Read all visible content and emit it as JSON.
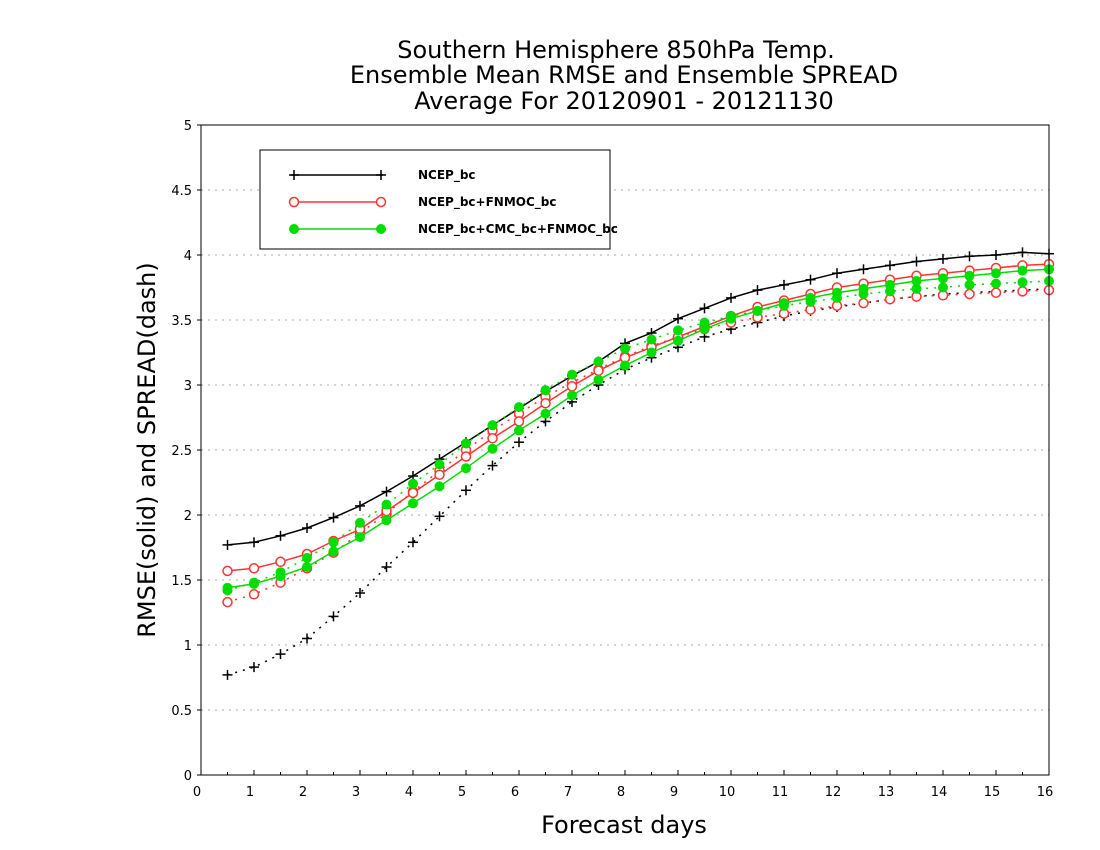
{
  "chart_data": {
    "type": "line",
    "title_lines": [
      "Southern Hemisphere 850hPa Temp.",
      "Ensemble Mean RMSE and Ensemble SPREAD",
      "Average For 20120901 - 20121130"
    ],
    "xlabel": "Forecast days",
    "ylabel": "RMSE(solid) and SPREAD(dash)",
    "xlim": [
      0,
      16
    ],
    "ylim": [
      0,
      5
    ],
    "xticks": [
      "0",
      "1",
      "2",
      "3",
      "4",
      "5",
      "6",
      "7",
      "8",
      "9",
      "10",
      "11",
      "12",
      "13",
      "14",
      "15",
      "16"
    ],
    "yticks": [
      "0",
      "0.5",
      "1",
      "1.5",
      "2",
      "2.5",
      "3",
      "3.5",
      "4",
      "4.5",
      "5"
    ],
    "grid": "horizontal-dotted",
    "legend_position": "top-left",
    "x": [
      0.5,
      1,
      1.5,
      2,
      2.5,
      3,
      3.5,
      4,
      4.5,
      5,
      5.5,
      6,
      6.5,
      7,
      7.5,
      8,
      8.5,
      9,
      9.5,
      10,
      10.5,
      11,
      11.5,
      12,
      12.5,
      13,
      13.5,
      14,
      14.5,
      15,
      15.5,
      16
    ],
    "series": [
      {
        "name": "NCEP_bc",
        "color": "#000000",
        "marker": "plus",
        "rmse": [
          1.77,
          1.79,
          1.84,
          1.9,
          1.98,
          2.07,
          2.18,
          2.3,
          2.43,
          2.56,
          2.69,
          2.82,
          2.95,
          3.07,
          3.18,
          3.32,
          3.4,
          3.51,
          3.59,
          3.67,
          3.73,
          3.77,
          3.81,
          3.86,
          3.89,
          3.92,
          3.95,
          3.97,
          3.99,
          4.0,
          4.02,
          4.01
        ],
        "spread": [
          0.77,
          0.83,
          0.93,
          1.05,
          1.22,
          1.4,
          1.6,
          1.79,
          1.99,
          2.19,
          2.38,
          2.56,
          2.72,
          2.87,
          3.0,
          3.12,
          3.21,
          3.29,
          3.37,
          3.43,
          3.48,
          3.53,
          3.57,
          3.6,
          3.63,
          3.66,
          3.68,
          3.7,
          3.71,
          3.72,
          3.73,
          3.74
        ]
      },
      {
        "name": "NCEP_bc+FNMOC_bc",
        "color": "#ff3333",
        "marker": "open-circle",
        "rmse": [
          1.57,
          1.59,
          1.64,
          1.7,
          1.8,
          1.89,
          2.03,
          2.17,
          2.31,
          2.45,
          2.59,
          2.72,
          2.86,
          2.99,
          3.11,
          3.21,
          3.29,
          3.37,
          3.45,
          3.53,
          3.6,
          3.65,
          3.7,
          3.75,
          3.78,
          3.81,
          3.84,
          3.86,
          3.88,
          3.9,
          3.92,
          3.93
        ],
        "spread": [
          1.33,
          1.39,
          1.48,
          1.59,
          1.71,
          1.86,
          2.01,
          2.18,
          2.34,
          2.5,
          2.65,
          2.78,
          2.91,
          3.02,
          3.12,
          3.22,
          3.3,
          3.37,
          3.43,
          3.48,
          3.52,
          3.55,
          3.58,
          3.61,
          3.63,
          3.66,
          3.68,
          3.69,
          3.7,
          3.71,
          3.72,
          3.73
        ]
      },
      {
        "name": "NCEP_bc+CMC_bc+FNMOC_bc",
        "color": "#00dd00",
        "marker": "filled-circle",
        "rmse": [
          1.44,
          1.47,
          1.53,
          1.6,
          1.72,
          1.83,
          1.96,
          2.09,
          2.22,
          2.36,
          2.51,
          2.65,
          2.78,
          2.92,
          3.04,
          3.15,
          3.25,
          3.34,
          3.43,
          3.51,
          3.57,
          3.63,
          3.67,
          3.71,
          3.74,
          3.77,
          3.8,
          3.82,
          3.84,
          3.86,
          3.88,
          3.89
        ],
        "spread": [
          1.42,
          1.48,
          1.56,
          1.67,
          1.79,
          1.94,
          2.08,
          2.24,
          2.39,
          2.55,
          2.69,
          2.83,
          2.96,
          3.08,
          3.18,
          3.28,
          3.35,
          3.42,
          3.48,
          3.53,
          3.57,
          3.61,
          3.64,
          3.67,
          3.7,
          3.72,
          3.74,
          3.75,
          3.77,
          3.78,
          3.79,
          3.8
        ]
      }
    ]
  }
}
